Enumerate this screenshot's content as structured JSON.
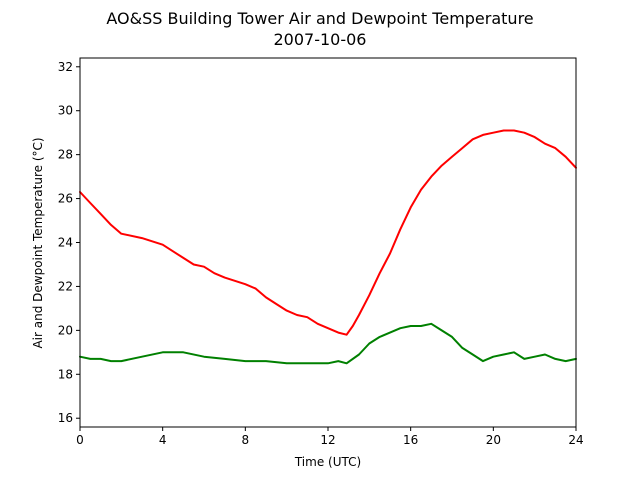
{
  "chart_data": {
    "type": "line",
    "title": "AO&SS Building Tower Air and Dewpoint Temperature",
    "subtitle": "2007-10-06",
    "xlabel": "Time (UTC)",
    "ylabel": "Air and Dewpoint Temperature (°C)",
    "xlim": [
      0,
      24
    ],
    "ylim": [
      15.6,
      32.4
    ],
    "xticks": [
      0,
      4,
      8,
      12,
      16,
      20,
      24
    ],
    "yticks": [
      16,
      18,
      20,
      22,
      24,
      26,
      28,
      30,
      32
    ],
    "grid": false,
    "series": [
      {
        "color": "#ff0000",
        "x": [
          0,
          0.5,
          1,
          1.5,
          2,
          3,
          4,
          4.5,
          5,
          5.5,
          6,
          6.5,
          7,
          8,
          8.5,
          9,
          9.5,
          10,
          10.5,
          11,
          11.5,
          12,
          12.5,
          12.9,
          13.2,
          13.5,
          14,
          14.5,
          15,
          15.5,
          16,
          16.5,
          17,
          17.5,
          18,
          18.5,
          19,
          19.5,
          20,
          20.5,
          21,
          21.5,
          22,
          22.5,
          23,
          23.5,
          24
        ],
        "y": [
          26.3,
          25.8,
          25.3,
          24.8,
          24.4,
          24.2,
          23.9,
          23.6,
          23.3,
          23.0,
          22.9,
          22.6,
          22.4,
          22.1,
          21.9,
          21.5,
          21.2,
          20.9,
          20.7,
          20.6,
          20.3,
          20.1,
          19.9,
          19.8,
          20.2,
          20.7,
          21.6,
          22.6,
          23.5,
          24.6,
          25.6,
          26.4,
          27.0,
          27.5,
          27.9,
          28.3,
          28.7,
          28.9,
          29.0,
          29.1,
          29.1,
          29.0,
          28.8,
          28.5,
          28.3,
          27.9,
          27.4
        ]
      },
      {
        "color": "#008000",
        "x": [
          0,
          0.5,
          1,
          1.5,
          2,
          3,
          4,
          4.5,
          5,
          6,
          7,
          8,
          9,
          10,
          11,
          12,
          12.5,
          12.9,
          13.5,
          14,
          14.5,
          15,
          15.5,
          16,
          16.5,
          17,
          17.5,
          18,
          18.5,
          19,
          19.5,
          20,
          20.5,
          21,
          21.5,
          22,
          22.5,
          23,
          23.5,
          24
        ],
        "y": [
          18.8,
          18.7,
          18.7,
          18.6,
          18.6,
          18.8,
          19.0,
          19.0,
          19.0,
          18.8,
          18.7,
          18.6,
          18.6,
          18.5,
          18.5,
          18.5,
          18.6,
          18.5,
          18.9,
          19.4,
          19.7,
          19.9,
          20.1,
          20.2,
          20.2,
          20.3,
          20.0,
          19.7,
          19.2,
          18.9,
          18.6,
          18.8,
          18.9,
          19.0,
          18.7,
          18.8,
          18.9,
          18.7,
          18.6,
          18.7
        ]
      }
    ]
  }
}
